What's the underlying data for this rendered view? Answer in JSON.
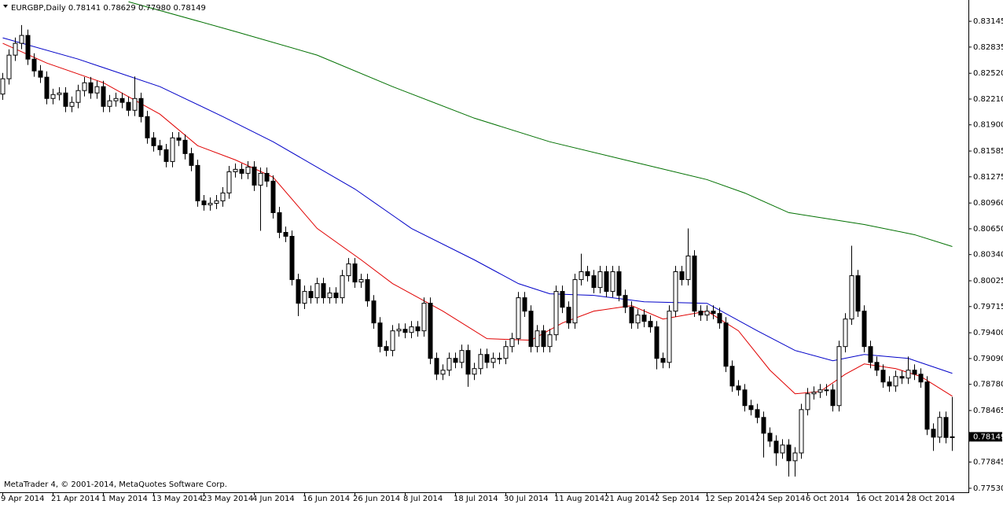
{
  "chart_data": {
    "type": "candlestick",
    "title": "EURGBP,Daily  0.78141 0.78629 0.77980 0.78149",
    "footer": "MetaTrader 4, © 2001-2014, MetaQuotes Software Corp.",
    "up_color": "#ffffff",
    "down_color": "#000000",
    "outline_color": "#000000",
    "categories": [
      "9 Apr 2014",
      null,
      null,
      null,
      null,
      null,
      null,
      null,
      "21 Apr 2014",
      null,
      null,
      null,
      null,
      null,
      null,
      null,
      "1 May 2014",
      null,
      null,
      null,
      null,
      null,
      null,
      null,
      "13 May 2014",
      null,
      null,
      null,
      null,
      null,
      null,
      null,
      "23 May 2014",
      null,
      null,
      null,
      null,
      null,
      null,
      null,
      "4 Jun 2014",
      null,
      null,
      null,
      null,
      null,
      null,
      null,
      "16 Jun 2014",
      null,
      null,
      null,
      null,
      null,
      null,
      null,
      "26 Jun 2014",
      null,
      null,
      null,
      null,
      null,
      null,
      null,
      "8 Jul 2014",
      null,
      null,
      null,
      null,
      null,
      null,
      null,
      "18 Jul 2014",
      null,
      null,
      null,
      null,
      null,
      null,
      null,
      "30 Jul 2014",
      null,
      null,
      null,
      null,
      null,
      null,
      null,
      "11 Aug 2014",
      null,
      null,
      null,
      null,
      null,
      null,
      null,
      "21 Aug 2014",
      null,
      null,
      null,
      null,
      null,
      null,
      null,
      "2 Sep 2014",
      null,
      null,
      null,
      null,
      null,
      null,
      null,
      "12 Sep 2014",
      null,
      null,
      null,
      null,
      null,
      null,
      null,
      "24 Sep 2014",
      null,
      null,
      null,
      null,
      null,
      null,
      null,
      "6 Oct 2014",
      null,
      null,
      null,
      null,
      null,
      null,
      null,
      "16 Oct 2014",
      null,
      null,
      null,
      null,
      null,
      null,
      null,
      "28 Oct 2014",
      null,
      null,
      null,
      null,
      null,
      null,
      null
    ],
    "open": [
      0.8227,
      0.82454,
      0.82738,
      0.8288,
      0.82975,
      0.8269,
      0.82548,
      0.82473,
      0.82217,
      0.82264,
      0.82283,
      0.82122,
      0.8217,
      0.82312,
      0.82406,
      0.82283,
      0.82359,
      0.82122,
      0.82189,
      0.82217,
      0.8217,
      0.82075,
      0.82217,
      0.81999,
      0.81743,
      0.81649,
      0.81601,
      0.81459,
      0.81743,
      0.81715,
      0.81554,
      0.81412,
      0.80986,
      0.80938,
      0.80957,
      0.80986,
      0.81081,
      0.81336,
      0.81365,
      0.81317,
      0.81393,
      0.81175,
      0.81317,
      0.81223,
      0.80844,
      0.80607,
      0.8056,
      0.80039,
      0.79755,
      0.79897,
      0.79821,
      0.79991,
      0.79821,
      0.79878,
      0.79821,
      0.80086,
      0.80228,
      0.8001,
      0.80039,
      0.79783,
      0.79518,
      0.79234,
      0.79187,
      0.79423,
      0.79442,
      0.79404,
      0.79471,
      0.79423,
      0.79755,
      0.79092,
      0.78902,
      0.7895,
      0.79092,
      0.79044,
      0.79187,
      0.78902,
      0.78969,
      0.79139,
      0.79044,
      0.79092,
      0.79092,
      0.79234,
      0.79329,
      0.79821,
      0.7966,
      0.79234,
      0.79423,
      0.79234,
      0.79376,
      0.79897,
      0.79707,
      0.79518,
      0.80039,
      0.80134,
      0.80086,
      0.79944,
      0.80134,
      0.79897,
      0.80134,
      0.79849,
      0.79707,
      0.79518,
      0.79613,
      0.79537,
      0.79471,
      0.79092,
      0.79044,
      0.7966,
      0.80134,
      0.80039,
      0.80323,
      0.7966,
      0.79613,
      0.7966,
      0.79632,
      0.79518,
      0.78997,
      0.7876,
      0.78713,
      0.78524,
      0.78476,
      0.78382,
      0.78192,
      0.78097,
      0.77955,
      0.7805,
      0.77861,
      0.77955,
      0.78476,
      0.78666,
      0.78685,
      0.78713,
      0.78713,
      0.78524,
      0.79234,
      0.79565,
      0.80086,
      0.7966,
      0.79234,
      0.79044,
      0.7895,
      0.78808,
      0.7876,
      0.78874,
      0.78855,
      0.7895,
      0.78902,
      0.78808,
      0.7824,
      0.78145,
      0.78382,
      0.78141
    ],
    "high": [
      0.82524,
      0.82808,
      0.8295,
      0.831,
      0.83045,
      0.8276,
      0.82618,
      0.82543,
      0.82334,
      0.82353,
      0.82353,
      0.8224,
      0.82382,
      0.82476,
      0.82476,
      0.82429,
      0.82429,
      0.82259,
      0.82287,
      0.82287,
      0.8224,
      0.82482,
      0.82287,
      0.82069,
      0.81813,
      0.81719,
      0.81671,
      0.81813,
      0.81813,
      0.81785,
      0.81624,
      0.81482,
      0.81056,
      0.81027,
      0.81056,
      0.81151,
      0.81406,
      0.81435,
      0.81435,
      0.81463,
      0.81463,
      0.81387,
      0.81387,
      0.81293,
      0.80914,
      0.80677,
      0.8063,
      0.80109,
      0.79967,
      0.79967,
      0.80061,
      0.80061,
      0.79948,
      0.79948,
      0.80156,
      0.80298,
      0.80298,
      0.80109,
      0.80109,
      0.79853,
      0.79588,
      0.79304,
      0.79493,
      0.79512,
      0.79512,
      0.79541,
      0.79541,
      0.79825,
      0.79825,
      0.79162,
      0.7902,
      0.79162,
      0.79162,
      0.79257,
      0.79257,
      0.79039,
      0.79209,
      0.79209,
      0.79162,
      0.79162,
      0.79304,
      0.79399,
      0.79891,
      0.79891,
      0.7973,
      0.79493,
      0.79493,
      0.79446,
      0.79967,
      0.79967,
      0.79777,
      0.80109,
      0.8035,
      0.80204,
      0.80156,
      0.80204,
      0.80204,
      0.80204,
      0.80204,
      0.79919,
      0.79777,
      0.79683,
      0.79683,
      0.79607,
      0.79541,
      0.79162,
      0.7973,
      0.80204,
      0.80204,
      0.80654,
      0.80393,
      0.7973,
      0.7973,
      0.7973,
      0.79702,
      0.79588,
      0.79067,
      0.7883,
      0.78783,
      0.78594,
      0.78546,
      0.78452,
      0.78262,
      0.78167,
      0.7812,
      0.7812,
      0.78025,
      0.78546,
      0.78736,
      0.78755,
      0.78783,
      0.78783,
      0.78783,
      0.79304,
      0.79635,
      0.80446,
      0.80156,
      0.7973,
      0.79304,
      0.79114,
      0.7902,
      0.78878,
      0.78944,
      0.78944,
      0.79114,
      0.7902,
      0.78972,
      0.78878,
      0.7831,
      0.78452,
      0.78452,
      0.78629
    ],
    "low": [
      0.822,
      0.82384,
      0.82668,
      0.8281,
      0.8262,
      0.82478,
      0.82403,
      0.82147,
      0.82147,
      0.82194,
      0.82052,
      0.82052,
      0.821,
      0.82242,
      0.82213,
      0.82213,
      0.82052,
      0.82052,
      0.82119,
      0.821,
      0.82005,
      0.82005,
      0.81929,
      0.81673,
      0.81579,
      0.81531,
      0.81389,
      0.81389,
      0.81645,
      0.81484,
      0.81342,
      0.80916,
      0.80868,
      0.80868,
      0.80887,
      0.80916,
      0.81011,
      0.81266,
      0.81247,
      0.81247,
      0.81105,
      0.80626,
      0.81153,
      0.80774,
      0.80537,
      0.8049,
      0.79969,
      0.796,
      0.79685,
      0.79751,
      0.79751,
      0.79751,
      0.79751,
      0.79751,
      0.79751,
      0.80016,
      0.7994,
      0.7994,
      0.79713,
      0.79448,
      0.79164,
      0.79117,
      0.79117,
      0.79353,
      0.79334,
      0.79334,
      0.79353,
      0.79353,
      0.79022,
      0.78832,
      0.78832,
      0.7888,
      0.78974,
      0.78974,
      0.7875,
      0.78832,
      0.78899,
      0.78974,
      0.78974,
      0.79022,
      0.79022,
      0.79164,
      0.79259,
      0.7959,
      0.79164,
      0.79164,
      0.79164,
      0.79164,
      0.79306,
      0.79637,
      0.79448,
      0.79448,
      0.79969,
      0.80016,
      0.79874,
      0.79874,
      0.79827,
      0.79827,
      0.79779,
      0.79637,
      0.79448,
      0.79448,
      0.79467,
      0.79401,
      0.7896,
      0.78974,
      0.78974,
      0.7959,
      0.79969,
      0.79969,
      0.7959,
      0.79543,
      0.79543,
      0.79562,
      0.79448,
      0.78927,
      0.7869,
      0.78643,
      0.78454,
      0.78406,
      0.78312,
      0.779,
      0.78027,
      0.778,
      0.77885,
      0.77671,
      0.77671,
      0.77885,
      0.78406,
      0.78596,
      0.78615,
      0.78643,
      0.78454,
      0.78454,
      0.79164,
      0.79495,
      0.7959,
      0.79164,
      0.78974,
      0.7888,
      0.78738,
      0.7869,
      0.7869,
      0.78785,
      0.78785,
      0.78832,
      0.78738,
      0.7817,
      0.7798,
      0.78075,
      0.78071,
      0.7798
    ],
    "close": [
      0.82454,
      0.82738,
      0.8288,
      0.82975,
      0.8269,
      0.82548,
      0.82473,
      0.82217,
      0.82264,
      0.82283,
      0.82122,
      0.8217,
      0.82312,
      0.82406,
      0.82283,
      0.82359,
      0.82122,
      0.82189,
      0.82217,
      0.8217,
      0.82075,
      0.82217,
      0.81999,
      0.81743,
      0.81649,
      0.81601,
      0.81459,
      0.81743,
      0.81715,
      0.81554,
      0.81412,
      0.80986,
      0.80938,
      0.80957,
      0.80986,
      0.81081,
      0.81336,
      0.81365,
      0.81317,
      0.81393,
      0.81175,
      0.81317,
      0.81223,
      0.80844,
      0.80607,
      0.8056,
      0.80039,
      0.79755,
      0.79897,
      0.79821,
      0.79991,
      0.79821,
      0.79878,
      0.79821,
      0.80086,
      0.80228,
      0.8001,
      0.80039,
      0.79783,
      0.79518,
      0.79234,
      0.79187,
      0.79423,
      0.79442,
      0.79404,
      0.79471,
      0.79423,
      0.79755,
      0.79092,
      0.78902,
      0.7895,
      0.79092,
      0.79044,
      0.79187,
      0.78902,
      0.78969,
      0.79139,
      0.79044,
      0.79092,
      0.79092,
      0.79234,
      0.79329,
      0.79821,
      0.7966,
      0.79234,
      0.79423,
      0.79234,
      0.79376,
      0.79897,
      0.79707,
      0.79518,
      0.80039,
      0.80134,
      0.80086,
      0.79944,
      0.80134,
      0.79897,
      0.80134,
      0.79849,
      0.79707,
      0.79518,
      0.79613,
      0.79537,
      0.79471,
      0.79092,
      0.79044,
      0.7966,
      0.80134,
      0.80039,
      0.80323,
      0.7966,
      0.79613,
      0.7966,
      0.79632,
      0.79518,
      0.78997,
      0.7876,
      0.78713,
      0.78524,
      0.78476,
      0.78382,
      0.78192,
      0.78097,
      0.77955,
      0.7805,
      0.77861,
      0.77955,
      0.78476,
      0.78666,
      0.78685,
      0.78713,
      0.78713,
      0.78524,
      0.79234,
      0.79565,
      0.80086,
      0.7966,
      0.79234,
      0.79044,
      0.7895,
      0.78808,
      0.7876,
      0.78874,
      0.78855,
      0.7895,
      0.78902,
      0.78808,
      0.7824,
      0.78145,
      0.78382,
      0.78141,
      0.78149
    ],
    "overlays": [
      {
        "color": "#007000",
        "x": [
          20,
          37,
          50,
          62,
          75,
          87,
          100,
          112,
          118,
          125,
          137,
          145,
          151
        ],
        "values": [
          0.8338,
          0.83022,
          0.82738,
          0.82359,
          0.8198,
          0.81696,
          0.81459,
          0.81241,
          0.8108,
          0.80844,
          0.80702,
          0.80579,
          0.80437
        ]
      },
      {
        "color": "#0000c8",
        "x": [
          0,
          12,
          25,
          35,
          43,
          56,
          65,
          75,
          82,
          87,
          94,
          102,
          112,
          120,
          126,
          132,
          137,
          144,
          151
        ],
        "values": [
          0.82946,
          0.8269,
          0.82359,
          0.81999,
          0.81696,
          0.81128,
          0.80654,
          0.80276,
          0.79991,
          0.79868,
          0.79849,
          0.79773,
          0.79754,
          0.79423,
          0.79187,
          0.79063,
          0.79139,
          0.79092,
          0.78912
        ]
      },
      {
        "color": "#e00000",
        "x": [
          0,
          7,
          16,
          25,
          31,
          37,
          43,
          50,
          57,
          62,
          70,
          77,
          84,
          89,
          94,
          100,
          105,
          112,
          117,
          122,
          126,
          130,
          134,
          137,
          142,
          146,
          151
        ],
        "values": [
          0.8288,
          0.82643,
          0.82406,
          0.82028,
          0.81649,
          0.81478,
          0.8127,
          0.80654,
          0.80276,
          0.79991,
          0.7966,
          0.79329,
          0.7931,
          0.79518,
          0.7966,
          0.79726,
          0.79565,
          0.7966,
          0.79423,
          0.7895,
          0.78666,
          0.78694,
          0.78902,
          0.79025,
          0.78969,
          0.78874,
          0.78637
        ]
      }
    ],
    "ylim": [
      0.77482,
      0.83401
    ],
    "yticks": [
      0.83145,
      0.82835,
      {
        "value": 0.8252,
        "label": "0.82520"
      },
      {
        "value": 0.8221,
        "label": "0.82210"
      },
      {
        "value": 0.819,
        "label": "0.81900"
      },
      0.81585,
      0.81275,
      {
        "value": 0.8096,
        "label": "0.80960"
      },
      {
        "value": 0.8065,
        "label": "0.80650"
      },
      {
        "value": 0.8034,
        "label": "0.80340"
      },
      0.80025,
      0.79715,
      {
        "value": 0.794,
        "label": "0.79400"
      },
      {
        "value": 0.7909,
        "label": "0.79090"
      },
      {
        "value": 0.7878,
        "label": "0.78780"
      },
      0.78465,
      0.77845,
      {
        "value": 0.7753,
        "label": "0.77530"
      }
    ],
    "last_price": 0.78149
  }
}
